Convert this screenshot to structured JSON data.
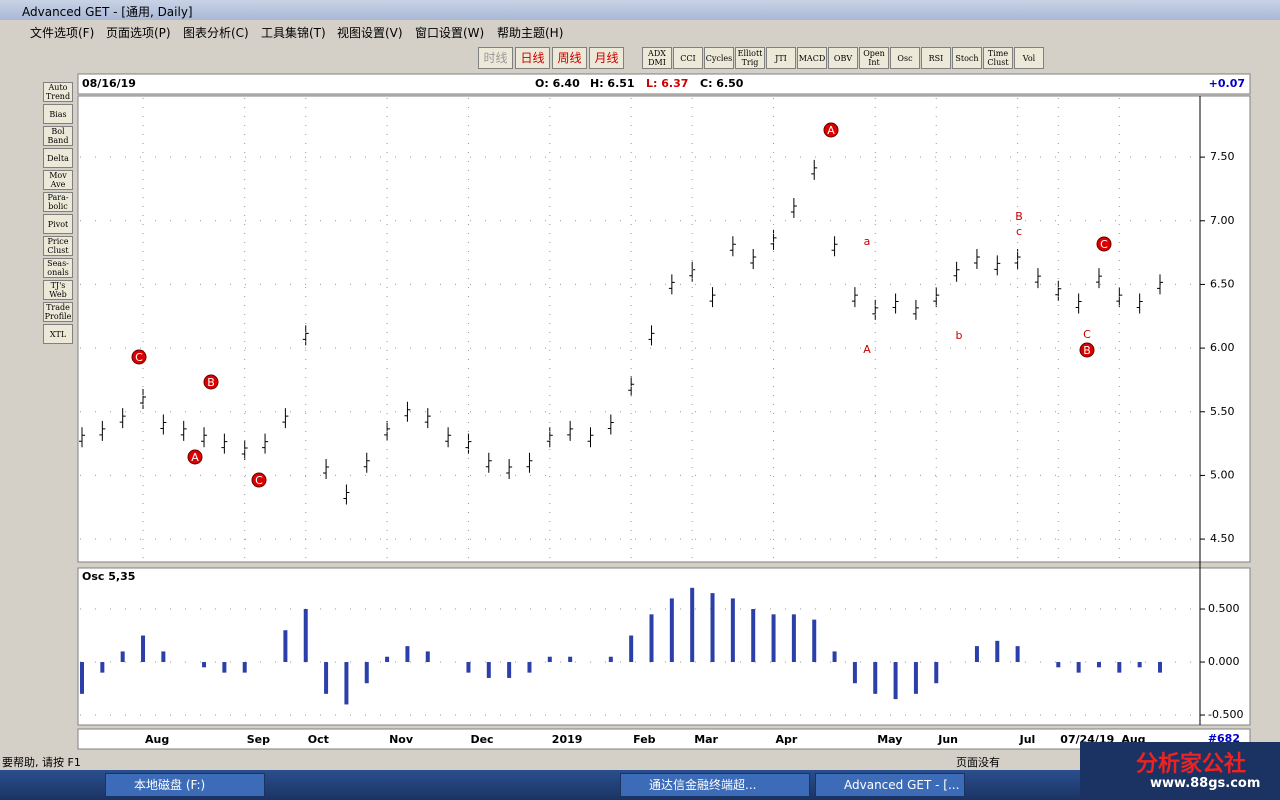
{
  "window": {
    "title": "Advanced GET - [通用, Daily]"
  },
  "menu": [
    "文件选项(F)",
    "页面选项(P)",
    "图表分析(C)",
    "工具集锦(T)",
    "视图设置(V)",
    "窗口设置(W)",
    "帮助主题(H)"
  ],
  "period_buttons": [
    "时线",
    "日线",
    "周线",
    "月线"
  ],
  "study_buttons": [
    "ADX DMI",
    "CCI",
    "Cycles",
    "Elliott Trig",
    "JTI",
    "MACD",
    "OBV",
    "Open Int",
    "Osc",
    "RSI",
    "Stoch",
    "Time Clust",
    "Vol"
  ],
  "left_buttons": [
    "Auto Trend",
    "Bias",
    "Bol Band",
    "Delta",
    "Mov Ave",
    "Para-bolic",
    "Pivot",
    "Price Clust",
    "Seas-onals",
    "TJ's Web",
    "Trade Profile",
    "XTL"
  ],
  "header": {
    "date": "08/16/19",
    "open": "O: 6.40",
    "high": "H: 6.51",
    "low": "L: 6.37",
    "close": "C: 6.50",
    "change": "+0.07"
  },
  "chart_data": {
    "type": "bar",
    "categories": [
      null,
      null,
      null,
      "Aug",
      null,
      null,
      null,
      null,
      "Sep",
      null,
      null,
      "Oct",
      null,
      null,
      null,
      "Nov",
      null,
      null,
      null,
      "Dec",
      null,
      null,
      null,
      "2019",
      null,
      null,
      null,
      "Feb",
      null,
      null,
      "Mar",
      null,
      null,
      null,
      "Apr",
      null,
      null,
      null,
      null,
      "May",
      null,
      null,
      "Jun",
      null,
      null,
      null,
      "Jul",
      null,
      "07/24/19",
      null,
      null,
      "Aug",
      null,
      null
    ],
    "values": [
      5.3,
      5.35,
      5.45,
      5.6,
      5.4,
      5.35,
      5.3,
      5.25,
      5.2,
      5.25,
      5.45,
      6.1,
      5.05,
      4.85,
      5.1,
      5.35,
      5.5,
      5.45,
      5.3,
      5.25,
      5.1,
      5.05,
      5.1,
      5.3,
      5.35,
      5.3,
      5.4,
      5.7,
      6.1,
      6.5,
      6.6,
      6.4,
      6.8,
      6.7,
      6.85,
      7.1,
      7.4,
      6.8,
      6.4,
      6.3,
      6.35,
      6.3,
      6.4,
      6.6,
      6.7,
      6.65,
      6.7,
      6.55,
      6.45,
      6.35,
      6.55,
      6.4,
      6.35,
      6.5
    ],
    "color": "#000000",
    "ylim": [
      4.32,
      7.98
    ],
    "yticks": [
      {
        "value": 4.5,
        "label": "4.50"
      },
      {
        "value": 5,
        "label": "5.00"
      },
      {
        "value": 5.5,
        "label": "5.50"
      },
      {
        "value": 6,
        "label": "6.00"
      },
      {
        "value": 6.5,
        "label": "6.50"
      },
      {
        "value": 7,
        "label": "7.00"
      },
      {
        "value": 7.5,
        "label": "7.50"
      }
    ],
    "wave_labels": [
      "C",
      "A",
      "B",
      "C",
      "A",
      "C",
      "B",
      "a",
      "A",
      "b",
      "B",
      "c",
      "C"
    ],
    "osc": {
      "title": "Osc 5,35",
      "color": "#2b3fa8",
      "values": [
        -0.3,
        -0.1,
        0.1,
        0.25,
        0.1,
        0,
        -0.05,
        -0.1,
        -0.1,
        0,
        0.3,
        0.5,
        -0.3,
        -0.4,
        -0.2,
        0.05,
        0.15,
        0.1,
        0,
        -0.1,
        -0.15,
        -0.15,
        -0.1,
        0.05,
        0.05,
        0,
        0.05,
        0.25,
        0.45,
        0.6,
        0.7,
        0.65,
        0.6,
        0.5,
        0.45,
        0.45,
        0.4,
        0.1,
        -0.2,
        -0.3,
        -0.35,
        -0.3,
        -0.2,
        0,
        0.15,
        0.2,
        0.15,
        0,
        -0.05,
        -0.1,
        -0.05,
        -0.1,
        -0.05,
        -0.1
      ],
      "ylim": [
        -0.594,
        0.887
      ],
      "yticks": [
        {
          "value": -0.5,
          "label": "-0.500"
        },
        {
          "value": 0,
          "label": "0.000"
        },
        {
          "value": 0.5,
          "label": "0.500"
        }
      ]
    },
    "bar_count": "#682"
  },
  "status": {
    "help": "要帮助, 请按 F1",
    "page": "页面没有"
  },
  "taskbar": [
    "本地磁盘 (F:)",
    "通达信金融终端超...",
    "Advanced GET - [..."
  ],
  "watermark": {
    "name": "分析家公社",
    "url": "www.88gs.com"
  }
}
